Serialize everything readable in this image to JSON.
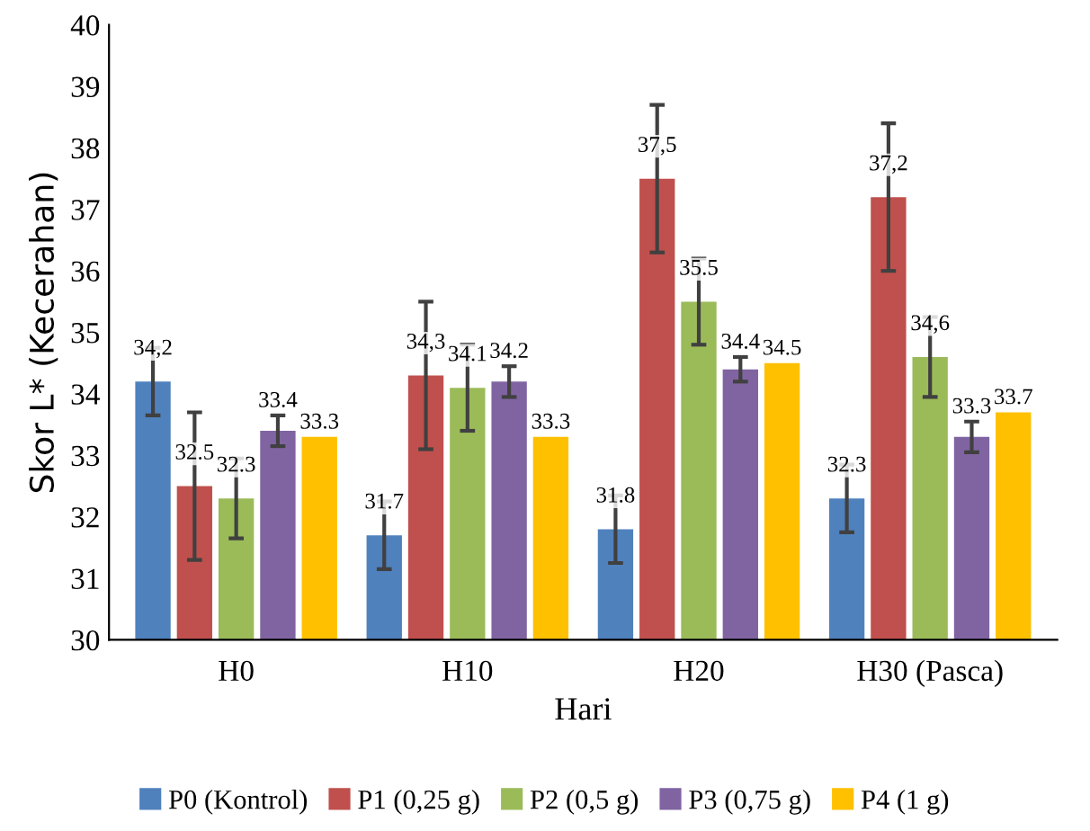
{
  "chart_data": {
    "type": "bar",
    "xlabel": "Hari",
    "ylabel": "Skor L* (Kecerahan)",
    "categories": [
      "H0",
      "H10",
      "H20",
      "H30 (Pasca)"
    ],
    "ylim": [
      30,
      40
    ],
    "yticks": [
      30,
      31,
      32,
      33,
      34,
      35,
      36,
      37,
      38,
      39,
      40
    ],
    "grid": false,
    "legend": "bottom",
    "series": [
      {
        "name": "P0 (Kontrol)",
        "color": "#4f81bd",
        "values": [
          34.2,
          31.7,
          31.8,
          32.3
        ],
        "errors": [
          0.55,
          0.55,
          0.55,
          0.55
        ],
        "value_labels": [
          "34,2",
          "31.7",
          "31.8",
          "32.3"
        ]
      },
      {
        "name": "P1 (0,25 g)",
        "color": "#c0504d",
        "values": [
          32.5,
          34.3,
          37.5,
          37.2
        ],
        "errors": [
          1.2,
          1.2,
          1.2,
          1.2
        ],
        "value_labels": [
          "32.5",
          "34,3",
          "37,5",
          "37,2"
        ]
      },
      {
        "name": "P2 (0,5 g)",
        "color": "#9bbb59",
        "values": [
          32.3,
          34.1,
          35.5,
          34.6
        ],
        "errors": [
          0.65,
          0.7,
          0.7,
          0.65
        ],
        "value_labels": [
          "32.3",
          "34.1",
          "35.5",
          "34,6"
        ]
      },
      {
        "name": "P3 (0,75 g)",
        "color": "#8064a2",
        "values": [
          33.4,
          34.2,
          34.4,
          33.3
        ],
        "errors": [
          0.25,
          0.25,
          0.2,
          0.25
        ],
        "value_labels": [
          "33.4",
          "34.2",
          "34.4",
          "33.3"
        ]
      },
      {
        "name": "P4 (1 g)",
        "color": "#ffc000",
        "values": [
          33.3,
          33.3,
          34.5,
          33.7
        ],
        "value_labels": [
          "33.3",
          "33.3",
          "34.5",
          "33.7"
        ]
      }
    ]
  }
}
